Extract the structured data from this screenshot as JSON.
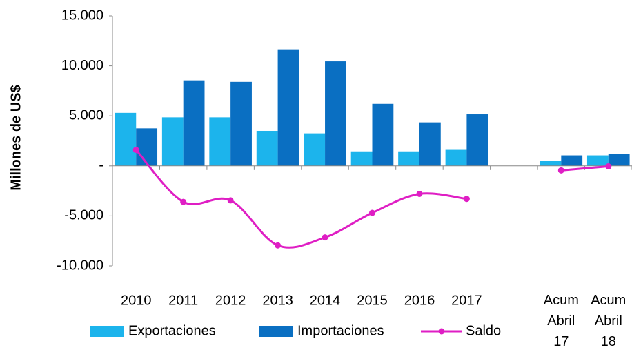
{
  "chart_data": {
    "type": "bar",
    "y_label": "Millones de US$",
    "categories": [
      "2010",
      "2011",
      "2012",
      "2013",
      "2014",
      "2015",
      "2016",
      "2017",
      null,
      "Acum Abril 17",
      "Acum Abril 18"
    ],
    "series": [
      {
        "name": "Exportaciones",
        "color": "#1cb4ec",
        "type": "bar",
        "values": [
          5300,
          4850,
          4850,
          3500,
          3250,
          1450,
          1450,
          1600,
          null,
          500,
          1050
        ]
      },
      {
        "name": "Importaciones",
        "color": "#0a6fc2",
        "type": "bar",
        "values": [
          3750,
          8550,
          8400,
          11650,
          10450,
          6200,
          4350,
          5150,
          null,
          1050,
          1200
        ]
      },
      {
        "name": "Saldo",
        "color": "#df1ec4",
        "type": "line",
        "values": [
          1600,
          -3600,
          -3450,
          -7950,
          -7150,
          -4700,
          -2800,
          -3300,
          null,
          -450,
          -50
        ]
      }
    ],
    "ylim": [
      -10000,
      15000
    ],
    "yticks": [
      {
        "value": -10000,
        "label": "-10.000"
      },
      {
        "value": -5000,
        "label": "-5.000"
      },
      {
        "value": 0,
        "label": "-"
      },
      {
        "value": 5000,
        "label": "5.000"
      },
      {
        "value": 10000,
        "label": "10.000"
      },
      {
        "value": 15000,
        "label": "15.000"
      }
    ],
    "legend": "bottom"
  }
}
